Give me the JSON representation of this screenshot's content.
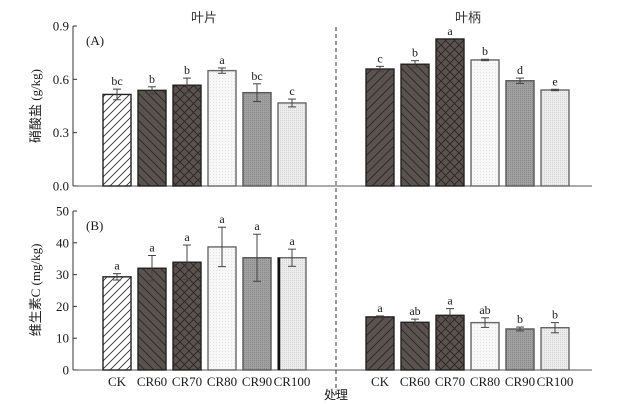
{
  "chart_data": [
    {
      "type": "bar",
      "panel": "(A)",
      "ylabel": "硝酸盐 (g/kg)",
      "ylim": [
        0,
        0.9
      ],
      "yticks": [
        "0.0",
        "0.3",
        "0.6",
        "0.9"
      ],
      "ytick_values": [
        0,
        0.3,
        0.6,
        0.9
      ],
      "groups": [
        {
          "name": "叶片",
          "categories": [
            "CK",
            "CR60",
            "CR70",
            "CR80",
            "CR90",
            "CR100"
          ],
          "values": [
            0.515,
            0.538,
            0.567,
            0.649,
            0.525,
            0.467
          ],
          "errors": [
            0.03,
            0.02,
            0.04,
            0.015,
            0.05,
            0.022
          ],
          "significance": [
            "bc",
            "b",
            "b",
            "a",
            "bc",
            "c"
          ]
        },
        {
          "name": "叶柄",
          "categories": [
            "CK",
            "CR60",
            "CR70",
            "CR80",
            "CR90",
            "CR100"
          ],
          "values": [
            0.658,
            0.685,
            0.827,
            0.709,
            0.592,
            0.54
          ],
          "errors": [
            0.015,
            0.02,
            0.0,
            0.004,
            0.015,
            0.004
          ],
          "significance": [
            "c",
            "b",
            "a",
            "b",
            "d",
            "e"
          ]
        }
      ]
    },
    {
      "type": "bar",
      "panel": "(B)",
      "ylabel": "维生素C (mg/kg)",
      "xlabel": "处理",
      "ylim": [
        0,
        50
      ],
      "yticks": [
        "0",
        "10",
        "20",
        "30",
        "40",
        "50"
      ],
      "ytick_values": [
        0,
        10,
        20,
        30,
        40,
        50
      ],
      "groups": [
        {
          "name": "叶片",
          "categories": [
            "CK",
            "CR60",
            "CR70",
            "CR80",
            "CR90",
            "CR100"
          ],
          "values": [
            29.3,
            32.0,
            33.9,
            38.7,
            35.3,
            35.3
          ],
          "errors": [
            1.0,
            4.0,
            5.4,
            6.2,
            7.4,
            2.7
          ],
          "significance": [
            "a",
            "a",
            "a",
            "a",
            "a",
            "a"
          ]
        },
        {
          "name": "叶柄",
          "categories": [
            "CK",
            "CR60",
            "CR70",
            "CR80",
            "CR90",
            "CR100"
          ],
          "values": [
            16.7,
            15.0,
            17.2,
            14.9,
            12.9,
            13.3
          ],
          "errors": [
            0.3,
            1.0,
            2.1,
            1.5,
            0.6,
            1.6
          ],
          "significance": [
            "a",
            "ab",
            "a",
            "ab",
            "b",
            "b"
          ]
        }
      ]
    }
  ],
  "legend": {
    "fills": {
      "CK_blade": "#ffffff",
      "dark": "#5a524f",
      "CR80": "#f6f6f6",
      "CR90": "#9a9a9a",
      "CR100": "#e8e8e8"
    }
  }
}
